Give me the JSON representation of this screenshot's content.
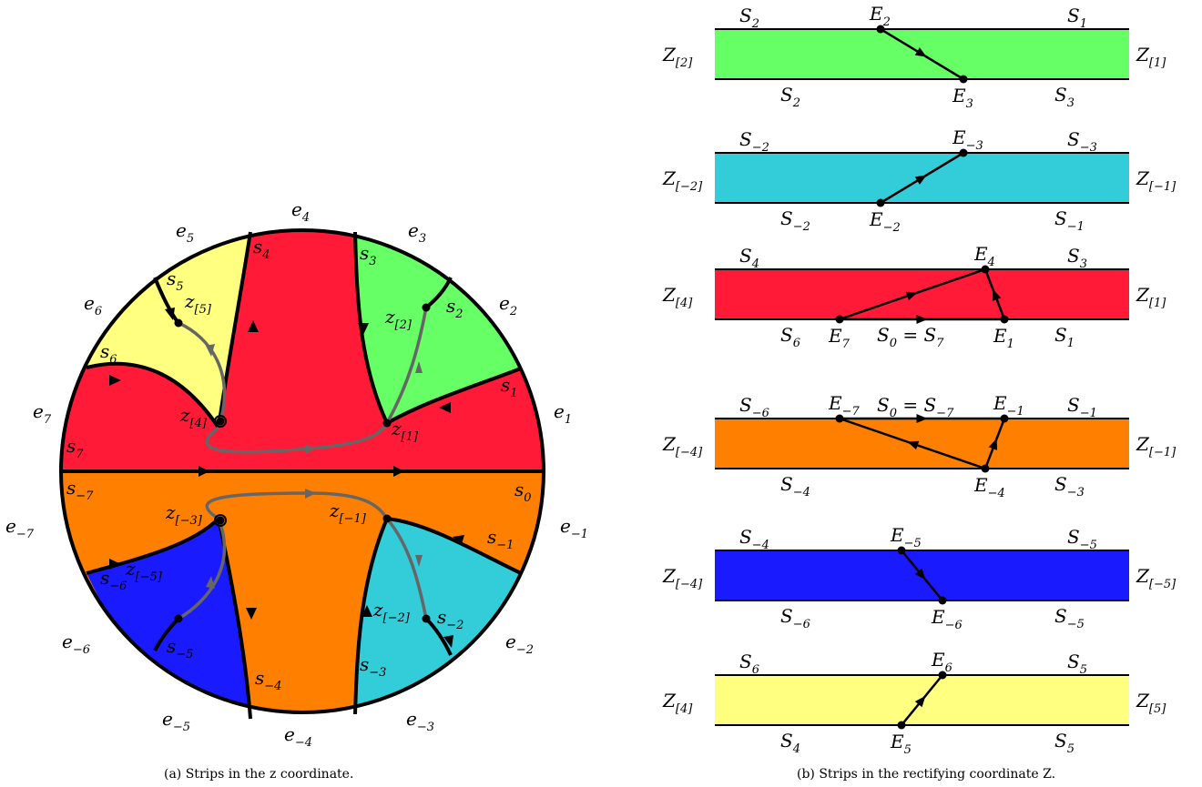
{
  "colors": {
    "red": "#ff1a38",
    "orange": "#ff8000",
    "yellow": "#ffff80",
    "green": "#66ff66",
    "cyan": "#33ccd9",
    "blue": "#1a1aff",
    "curve_gray": "#666666"
  },
  "left_panel": {
    "caption": "(a) Strips in the z coordinate.",
    "outer_labels": {
      "e1": {
        "base": "e",
        "sub": "1"
      },
      "e2": {
        "base": "e",
        "sub": "2"
      },
      "e3": {
        "base": "e",
        "sub": "3"
      },
      "e4": {
        "base": "e",
        "sub": "4"
      },
      "e5": {
        "base": "e",
        "sub": "5"
      },
      "e6": {
        "base": "e",
        "sub": "6"
      },
      "e7": {
        "base": "e",
        "sub": "7"
      },
      "em1": {
        "base": "e",
        "sub": "−1"
      },
      "em2": {
        "base": "e",
        "sub": "−2"
      },
      "em3": {
        "base": "e",
        "sub": "−3"
      },
      "em4": {
        "base": "e",
        "sub": "−4"
      },
      "em5": {
        "base": "e",
        "sub": "−5"
      },
      "em6": {
        "base": "e",
        "sub": "−6"
      },
      "em7": {
        "base": "e",
        "sub": "−7"
      }
    },
    "inner_labels": {
      "s0": {
        "base": "s",
        "sub": "0"
      },
      "s1": {
        "base": "s",
        "sub": "1"
      },
      "s2": {
        "base": "s",
        "sub": "2"
      },
      "s3": {
        "base": "s",
        "sub": "3"
      },
      "s4": {
        "base": "s",
        "sub": "4"
      },
      "s5": {
        "base": "s",
        "sub": "5"
      },
      "s6": {
        "base": "s",
        "sub": "6"
      },
      "s7": {
        "base": "s",
        "sub": "7"
      },
      "sm1": {
        "base": "s",
        "sub": "−1"
      },
      "sm2": {
        "base": "s",
        "sub": "−2"
      },
      "sm3": {
        "base": "s",
        "sub": "−3"
      },
      "sm4": {
        "base": "s",
        "sub": "−4"
      },
      "sm5": {
        "base": "s",
        "sub": "−5"
      },
      "sm6": {
        "base": "s",
        "sub": "−6"
      },
      "sm7": {
        "base": "s",
        "sub": "−7"
      }
    },
    "point_labels": {
      "z1": {
        "base": "z",
        "sub": "[1]"
      },
      "z2": {
        "base": "z",
        "sub": "[2]"
      },
      "z4": {
        "base": "z",
        "sub": "[4]"
      },
      "z5": {
        "base": "z",
        "sub": "[5]"
      },
      "zm1": {
        "base": "z",
        "sub": "[−1]"
      },
      "zm2": {
        "base": "z",
        "sub": "[−2]"
      },
      "zm3": {
        "base": "z",
        "sub": "[−3]"
      },
      "zm5": {
        "base": "z",
        "sub": "[−5]"
      }
    }
  },
  "right_panel": {
    "caption": "(b) Strips in the rectifying coordinate Z.",
    "strips": [
      {
        "fill": "green",
        "left_z": {
          "base": "Z",
          "sub": "[2]"
        },
        "right_z": {
          "base": "Z",
          "sub": "[1]"
        },
        "top_left": {
          "base": "S",
          "sub": "2"
        },
        "top_right": {
          "base": "S",
          "sub": "1"
        },
        "bot_left": {
          "base": "S",
          "sub": "2"
        },
        "bot_right": {
          "base": "S",
          "sub": "3"
        },
        "points": [
          {
            "base": "E",
            "sub": "2"
          },
          {
            "base": "E",
            "sub": "3"
          }
        ]
      },
      {
        "fill": "cyan",
        "left_z": {
          "base": "Z",
          "sub": "[−2]"
        },
        "right_z": {
          "base": "Z",
          "sub": "[−1]"
        },
        "top_left": {
          "base": "S",
          "sub": "−2"
        },
        "top_right": {
          "base": "S",
          "sub": "−3"
        },
        "bot_left": {
          "base": "S",
          "sub": "−2"
        },
        "bot_right": {
          "base": "S",
          "sub": "−1"
        },
        "points": [
          {
            "base": "E",
            "sub": "−3"
          },
          {
            "base": "E",
            "sub": "−2"
          }
        ]
      },
      {
        "fill": "red",
        "left_z": {
          "base": "Z",
          "sub": "[4]"
        },
        "right_z": {
          "base": "Z",
          "sub": "[1]"
        },
        "top_left": {
          "base": "S",
          "sub": "4"
        },
        "top_right": {
          "base": "S",
          "sub": "3"
        },
        "bot_left": {
          "base": "S",
          "sub": "6"
        },
        "bot_right": {
          "base": "S",
          "sub": "1"
        },
        "points": [
          {
            "base": "E",
            "sub": "4"
          },
          {
            "base": "E",
            "sub": "7"
          },
          {
            "base": "E",
            "sub": "1"
          }
        ],
        "mid_label": {
          "pre": "S",
          "pre_sub": "0",
          "eq": " = S",
          "post_sub": "7"
        }
      },
      {
        "fill": "orange",
        "left_z": {
          "base": "Z",
          "sub": "[−4]"
        },
        "right_z": {
          "base": "Z",
          "sub": "[−1]"
        },
        "top_left": {
          "base": "S",
          "sub": "−6"
        },
        "top_right": {
          "base": "S",
          "sub": "−1"
        },
        "bot_left": {
          "base": "S",
          "sub": "−4"
        },
        "bot_right": {
          "base": "S",
          "sub": "−3"
        },
        "points": [
          {
            "base": "E",
            "sub": "−7"
          },
          {
            "base": "E",
            "sub": "−1"
          },
          {
            "base": "E",
            "sub": "−4"
          }
        ],
        "mid_label": {
          "pre": "S",
          "pre_sub": "0",
          "eq": " = S",
          "post_sub": "−7"
        }
      },
      {
        "fill": "blue",
        "left_z": {
          "base": "Z",
          "sub": "[−4]"
        },
        "right_z": {
          "base": "Z",
          "sub": "[−5]"
        },
        "top_left": {
          "base": "S",
          "sub": "−4"
        },
        "top_right": {
          "base": "S",
          "sub": "−5"
        },
        "bot_left": {
          "base": "S",
          "sub": "−6"
        },
        "bot_right": {
          "base": "S",
          "sub": "−5"
        },
        "points": [
          {
            "base": "E",
            "sub": "−5"
          },
          {
            "base": "E",
            "sub": "−6"
          }
        ]
      },
      {
        "fill": "yellow",
        "left_z": {
          "base": "Z",
          "sub": "[4]"
        },
        "right_z": {
          "base": "Z",
          "sub": "[5]"
        },
        "top_left": {
          "base": "S",
          "sub": "6"
        },
        "top_right": {
          "base": "S",
          "sub": "5"
        },
        "bot_left": {
          "base": "S",
          "sub": "4"
        },
        "bot_right": {
          "base": "S",
          "sub": "5"
        },
        "points": [
          {
            "base": "E",
            "sub": "6"
          },
          {
            "base": "E",
            "sub": "5"
          }
        ]
      }
    ]
  }
}
